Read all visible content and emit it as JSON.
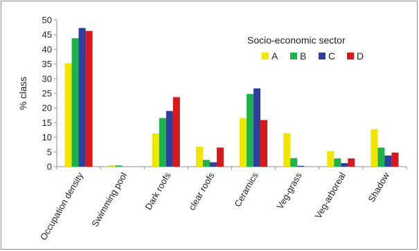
{
  "chart_data": {
    "type": "bar",
    "title": "",
    "xlabel": "",
    "ylabel": "% class",
    "ylim": [
      0,
      50
    ],
    "yticks": [
      0,
      5,
      10,
      15,
      20,
      25,
      30,
      35,
      40,
      45,
      50
    ],
    "grid": false,
    "legend": {
      "title": "Socio-economic sector",
      "placement": "top-right"
    },
    "categories": [
      "Occupation density",
      "Swimming pool",
      "Dark roofs",
      "clear roofs",
      "Ceramics",
      "Veg-grass",
      "Veg-arboreal",
      "Shadow"
    ],
    "series": [
      {
        "name": "A",
        "color": "#f2e600",
        "values": [
          35.3,
          0.5,
          11.3,
          6.8,
          16.6,
          11.4,
          5.3,
          12.8
        ]
      },
      {
        "name": "B",
        "color": "#1db24b",
        "values": [
          43.8,
          0.4,
          16.6,
          2.3,
          24.8,
          2.9,
          2.8,
          6.5
        ]
      },
      {
        "name": "C",
        "color": "#2e3f9e",
        "values": [
          47.3,
          0.0,
          19.0,
          1.5,
          26.7,
          0.3,
          1.2,
          3.8
        ]
      },
      {
        "name": "D",
        "color": "#d7191c",
        "values": [
          46.3,
          0.0,
          23.7,
          6.5,
          15.9,
          0.0,
          2.8,
          4.8
        ]
      }
    ]
  }
}
